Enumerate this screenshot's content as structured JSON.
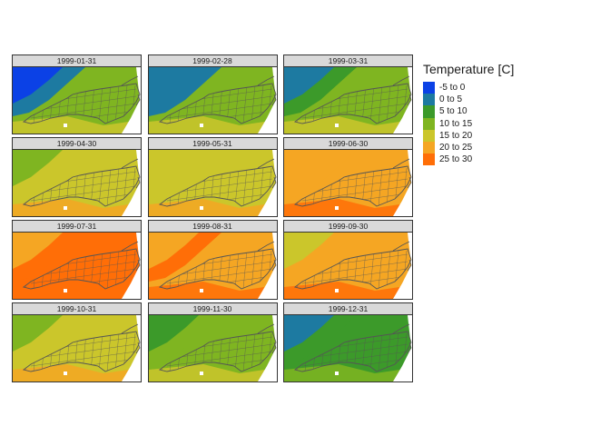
{
  "legend": {
    "title": "Temperature [C]",
    "classes": [
      {
        "label": "-5 to 0",
        "color": "#0b41e6"
      },
      {
        "label": "0 to 5",
        "color": "#1d7aa1"
      },
      {
        "label": "5 to 10",
        "color": "#3c9a2a"
      },
      {
        "label": "10 to 15",
        "color": "#7fb521"
      },
      {
        "label": "15 to 20",
        "color": "#cbc62b"
      },
      {
        "label": "20 to 25",
        "color": "#f5a623"
      },
      {
        "label": "25 to 30",
        "color": "#ff6e07"
      }
    ]
  },
  "panels": [
    {
      "date": "1999-01-31",
      "background_class": 3,
      "inland_class": 1,
      "cold_class": 0
    },
    {
      "date": "1999-02-28",
      "background_class": 3,
      "inland_class": 1,
      "cold_class": 1
    },
    {
      "date": "1999-03-31",
      "background_class": 3,
      "inland_class": 2,
      "cold_class": 1
    },
    {
      "date": "1999-04-30",
      "background_class": 4,
      "inland_class": 4,
      "cold_class": 3
    },
    {
      "date": "1999-05-31",
      "background_class": 4,
      "inland_class": 4,
      "cold_class": 4
    },
    {
      "date": "1999-06-30",
      "background_class": 5,
      "inland_class": 5,
      "cold_class": 5
    },
    {
      "date": "1999-07-31",
      "background_class": 6,
      "inland_class": 6,
      "cold_class": 5
    },
    {
      "date": "1999-08-31",
      "background_class": 5,
      "inland_class": 6,
      "cold_class": 5
    },
    {
      "date": "1999-09-30",
      "background_class": 5,
      "inland_class": 5,
      "cold_class": 4
    },
    {
      "date": "1999-10-31",
      "background_class": 4,
      "inland_class": 4,
      "cold_class": 3
    },
    {
      "date": "1999-11-30",
      "background_class": 3,
      "inland_class": 3,
      "cold_class": 2
    },
    {
      "date": "1999-12-31",
      "background_class": 2,
      "inland_class": 2,
      "cold_class": 1
    }
  ]
}
